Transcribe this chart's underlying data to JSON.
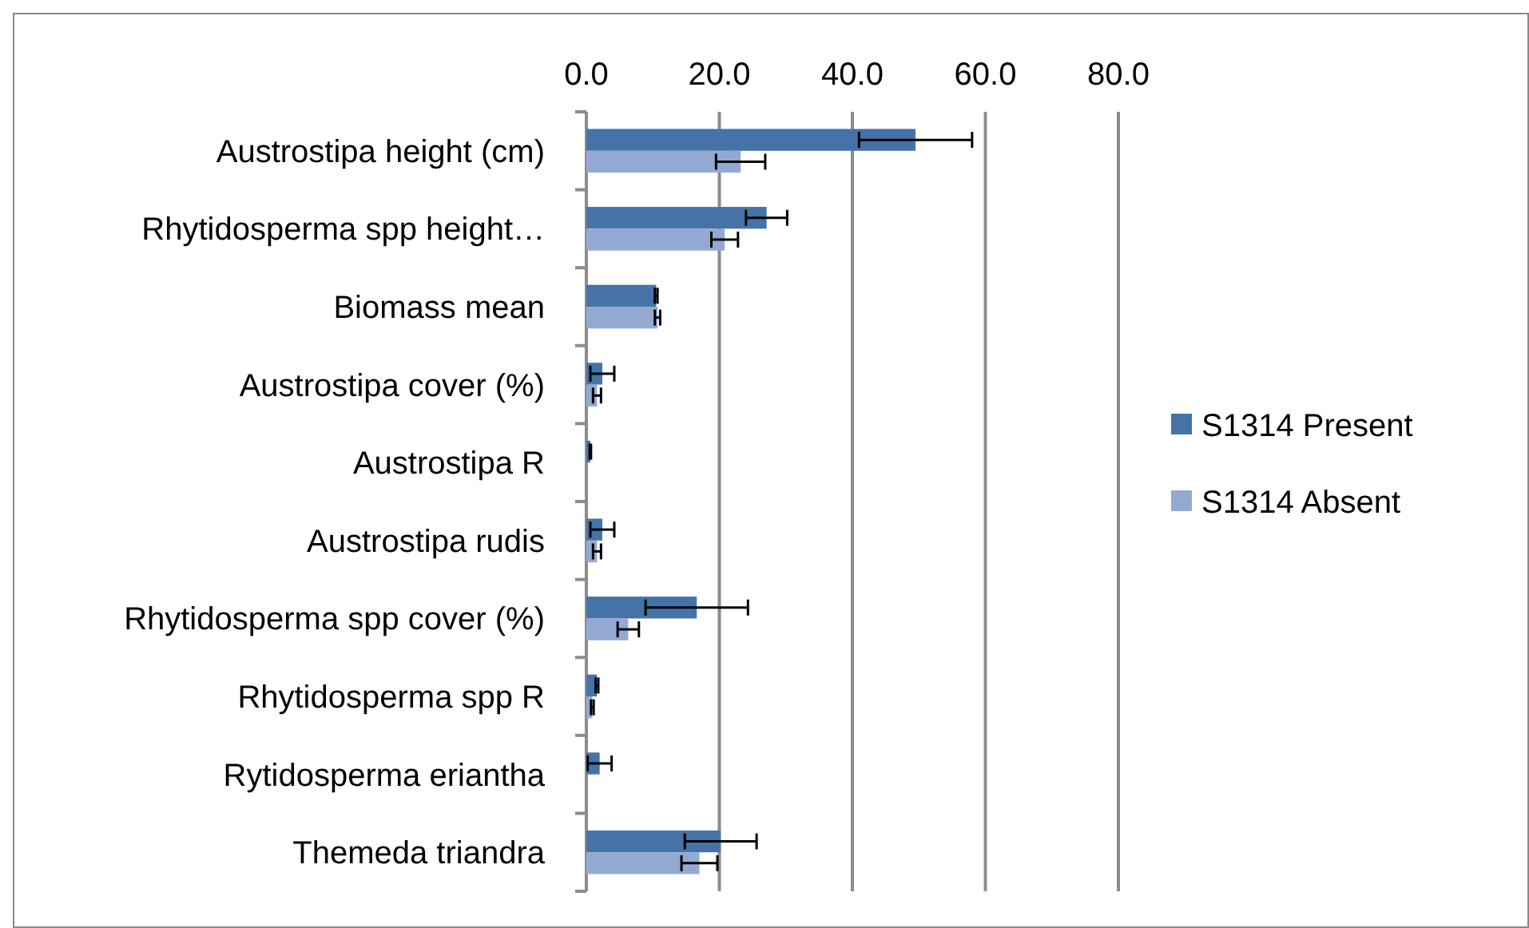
{
  "chart_data": {
    "type": "bar",
    "orientation": "horizontal",
    "categories": [
      "Austrostipa height (cm)",
      "Rhytidosperma spp height…",
      "Biomass mean",
      "Austrostipa cover (%)",
      "Austrostipa R",
      "Austrostipa rudis",
      "Rhytidosperma spp cover (%)",
      "Rhytidosperma spp R",
      "Rytidosperma eriantha",
      "Themeda triandra"
    ],
    "series": [
      {
        "name": "S1314 Present",
        "color": "#4573a7",
        "values": [
          49.5,
          27.1,
          10.5,
          2.4,
          0.6,
          2.4,
          16.6,
          1.6,
          2.0,
          20.2
        ],
        "errors": [
          8.5,
          3.1,
          0.2,
          1.8,
          0.1,
          1.8,
          7.7,
          0.2,
          1.8,
          5.4
        ]
      },
      {
        "name": "S1314 Absent",
        "color": "#94a9d2",
        "values": [
          23.2,
          20.8,
          10.7,
          1.6,
          null,
          1.6,
          6.3,
          0.9,
          null,
          17.0
        ],
        "errors": [
          3.7,
          2.0,
          0.4,
          0.6,
          null,
          0.6,
          1.6,
          0.2,
          null,
          2.7
        ]
      }
    ],
    "xlim": [
      0,
      80
    ],
    "xticks": [
      {
        "value": 0,
        "label": "0.0"
      },
      {
        "value": 20,
        "label": "20.0"
      },
      {
        "value": 40,
        "label": "40.0"
      },
      {
        "value": 60,
        "label": "60.0"
      },
      {
        "value": 80,
        "label": "80.0"
      }
    ],
    "grid": "x",
    "legend": "right"
  }
}
